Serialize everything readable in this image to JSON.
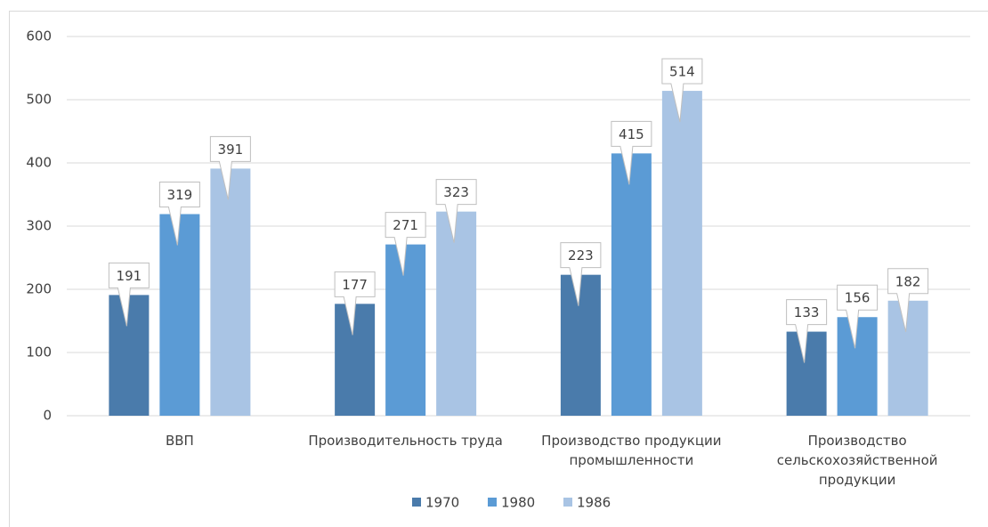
{
  "chart_data": {
    "type": "bar",
    "categories": [
      "ВВП",
      "Производительность труда",
      "Производство продукции промышленности",
      "Производство сельскохозяйственной продукции"
    ],
    "series": [
      {
        "name": "1970",
        "color": "#4a7bab",
        "values": [
          191,
          177,
          223,
          133
        ]
      },
      {
        "name": "1980",
        "color": "#5b9bd5",
        "values": [
          319,
          271,
          415,
          156
        ]
      },
      {
        "name": "1986",
        "color": "#a9c4e4",
        "values": [
          391,
          323,
          514,
          182
        ]
      }
    ],
    "ylim": [
      0,
      600
    ],
    "yticks": [
      0,
      100,
      200,
      300,
      400,
      500,
      600
    ],
    "grid": true,
    "legend": "bottom"
  }
}
